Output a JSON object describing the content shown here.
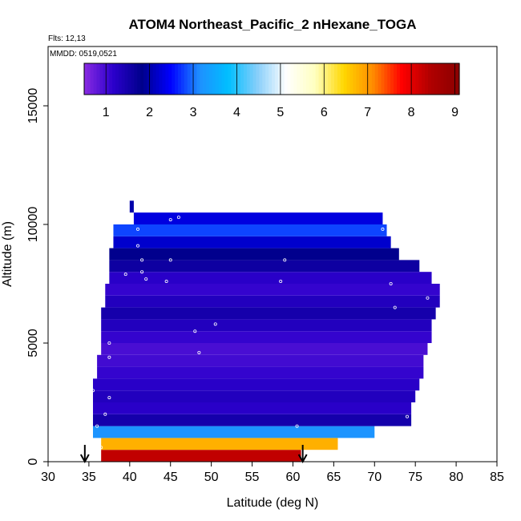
{
  "chart_data": {
    "type": "heatmap",
    "title": "ATOM4 Northeast_Pacific_2 nHexane_TOGA",
    "flights_label": "Flts: 12,13",
    "dates_label": "MMDD: 0519,0521",
    "xlabel": "Latitude (deg N)",
    "ylabel": "Altitude (m)",
    "xlim": [
      30,
      85
    ],
    "ylim": [
      0,
      17500
    ],
    "x_ticks": [
      "30",
      "35",
      "40",
      "45",
      "50",
      "55",
      "60",
      "65",
      "70",
      "75",
      "80",
      "85"
    ],
    "y_ticks": [
      "0",
      "5000",
      "10000",
      "15000"
    ],
    "colorbar": {
      "ticks": [
        "1",
        "2",
        "3",
        "4",
        "5",
        "6",
        "7",
        "8",
        "9"
      ],
      "range": [
        0.5,
        9.1
      ],
      "colors": [
        "#8a2be2",
        "#2b00cc",
        "#00008b",
        "#0000ff",
        "#1e90ff",
        "#00bfff",
        "#87cefa",
        "#ffffff",
        "#ffffc0",
        "#ffd700",
        "#ff8c00",
        "#ff0000",
        "#b00000",
        "#8b0000"
      ]
    },
    "bands": [
      {
        "alt": [
          0,
          500
        ],
        "lat": [
          36.5,
          61
        ],
        "value": 8.3
      },
      {
        "alt": [
          500,
          1000
        ],
        "lat": [
          36.5,
          65.5
        ],
        "value": 6.8
      },
      {
        "alt": [
          1000,
          1500
        ],
        "lat": [
          35.5,
          70
        ],
        "value": 3.2
      },
      {
        "alt": [
          1500,
          2000
        ],
        "lat": [
          35.5,
          74.5
        ],
        "value": 1.5
      },
      {
        "alt": [
          2000,
          2500
        ],
        "lat": [
          35.5,
          74.5
        ],
        "value": 1.2
      },
      {
        "alt": [
          2500,
          3000
        ],
        "lat": [
          35.5,
          75
        ],
        "value": 1.3
      },
      {
        "alt": [
          3000,
          3500
        ],
        "lat": [
          35.5,
          75.5
        ],
        "value": 1.2
      },
      {
        "alt": [
          3500,
          4000
        ],
        "lat": [
          36,
          76
        ],
        "value": 1.1
      },
      {
        "alt": [
          4000,
          4500
        ],
        "lat": [
          36,
          76
        ],
        "value": 1.0
      },
      {
        "alt": [
          4500,
          5000
        ],
        "lat": [
          36.5,
          76.5
        ],
        "value": 0.95
      },
      {
        "alt": [
          5000,
          5500
        ],
        "lat": [
          36.5,
          77
        ],
        "value": 1.1
      },
      {
        "alt": [
          5500,
          6000
        ],
        "lat": [
          36.5,
          77
        ],
        "value": 1.3
      },
      {
        "alt": [
          6000,
          6500
        ],
        "lat": [
          36.5,
          77.5
        ],
        "value": 1.5
      },
      {
        "alt": [
          6500,
          7000
        ],
        "lat": [
          37,
          78
        ],
        "value": 1.3
      },
      {
        "alt": [
          7000,
          7500
        ],
        "lat": [
          37,
          78
        ],
        "value": 1.1
      },
      {
        "alt": [
          7500,
          8000
        ],
        "lat": [
          37.5,
          77
        ],
        "value": 1.2
      },
      {
        "alt": [
          8000,
          8500
        ],
        "lat": [
          37.5,
          75.5
        ],
        "value": 1.6
      },
      {
        "alt": [
          8500,
          9000
        ],
        "lat": [
          37.5,
          73
        ],
        "value": 1.8
      },
      {
        "alt": [
          9000,
          9500
        ],
        "lat": [
          38,
          72
        ],
        "value": 2.2
      },
      {
        "alt": [
          9500,
          10000
        ],
        "lat": [
          38,
          71.5
        ],
        "value": 2.8
      },
      {
        "alt": [
          10000,
          10500
        ],
        "lat": [
          40.5,
          71
        ],
        "value": 2.3
      },
      {
        "alt": [
          10500,
          11000
        ],
        "lat": [
          40,
          40.5
        ],
        "value": 2.0
      }
    ],
    "samples": [
      {
        "lat": 36.0,
        "alt": 500
      },
      {
        "lat": 36.5,
        "alt": 600
      },
      {
        "lat": 36.0,
        "alt": 1500
      },
      {
        "lat": 37.0,
        "alt": 2000
      },
      {
        "lat": 37.5,
        "alt": 2700
      },
      {
        "lat": 35.5,
        "alt": 3000
      },
      {
        "lat": 37.5,
        "alt": 4400
      },
      {
        "lat": 37.5,
        "alt": 5000
      },
      {
        "lat": 39.5,
        "alt": 7900
      },
      {
        "lat": 41.5,
        "alt": 8500
      },
      {
        "lat": 41.0,
        "alt": 9100
      },
      {
        "lat": 41.0,
        "alt": 9800
      },
      {
        "lat": 45.0,
        "alt": 10200
      },
      {
        "lat": 46.0,
        "alt": 10300
      },
      {
        "lat": 45.0,
        "alt": 8500
      },
      {
        "lat": 44.5,
        "alt": 7600
      },
      {
        "lat": 48.0,
        "alt": 5500
      },
      {
        "lat": 50.5,
        "alt": 5800
      },
      {
        "lat": 48.5,
        "alt": 4600
      },
      {
        "lat": 58.5,
        "alt": 7600
      },
      {
        "lat": 59.0,
        "alt": 8500
      },
      {
        "lat": 71.0,
        "alt": 9800
      },
      {
        "lat": 72.0,
        "alt": 7500
      },
      {
        "lat": 72.5,
        "alt": 6500
      },
      {
        "lat": 76.5,
        "alt": 6900
      },
      {
        "lat": 74.0,
        "alt": 1900
      },
      {
        "lat": 60.5,
        "alt": 1500
      },
      {
        "lat": 42.0,
        "alt": 7700
      },
      {
        "lat": 41.5,
        "alt": 8000
      }
    ],
    "markers": [
      {
        "lat": 34.5,
        "type": "down-arrow"
      },
      {
        "lat": 61.2,
        "type": "down-arrow"
      }
    ],
    "grid": false
  }
}
